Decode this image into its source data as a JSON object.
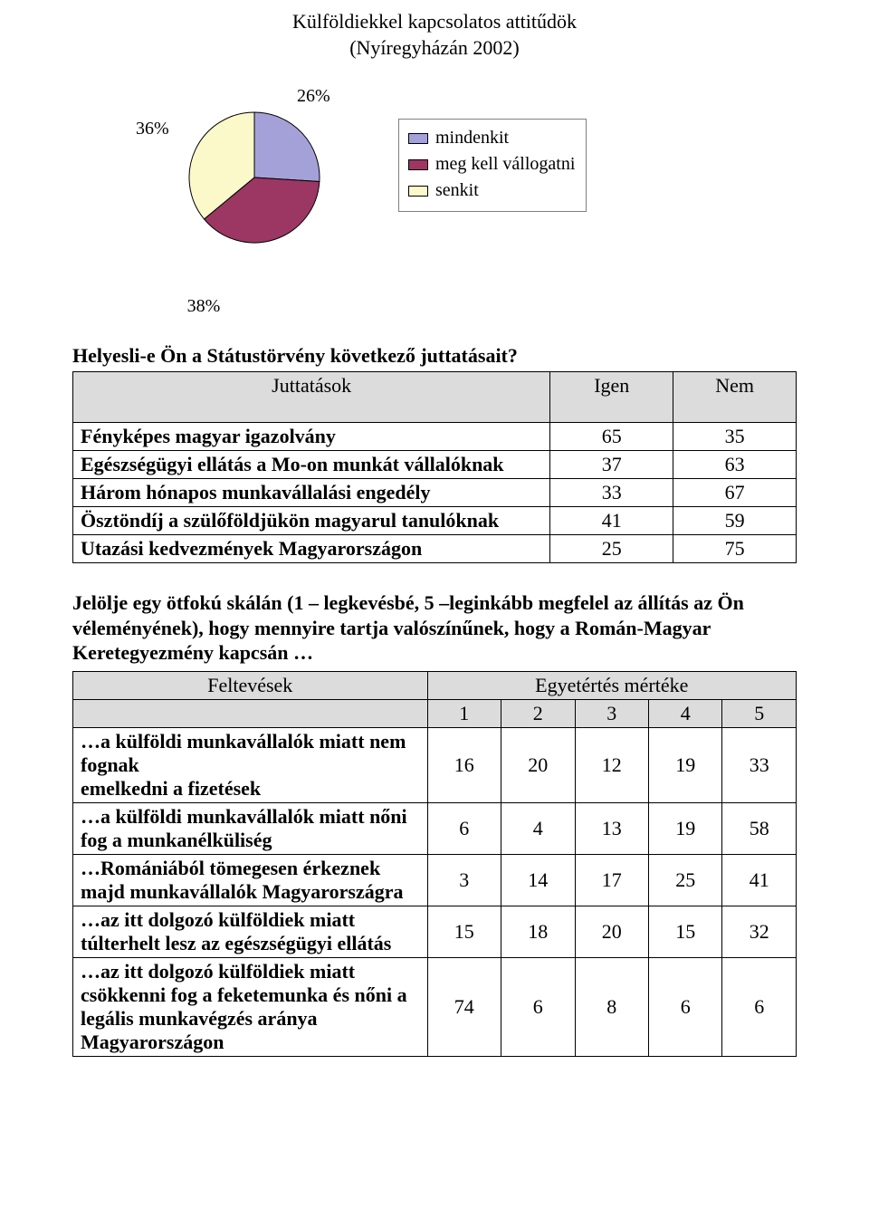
{
  "title": {
    "line1": "Külföldiekkel kapcsolatos attitűdök",
    "line2": "(Nyíregyházán 2002)"
  },
  "pie": {
    "type": "pie",
    "slices": [
      {
        "label": "mindenkit",
        "value": 26,
        "color": "#a4a1d9",
        "label_text": "26%"
      },
      {
        "label": "meg kell vállogatni",
        "value": 38,
        "color": "#9b3762",
        "label_text": "38%"
      },
      {
        "label": "senkit",
        "value": 36,
        "color": "#fbf9c9",
        "label_text": "36%"
      }
    ],
    "stroke": "#000000",
    "radius": 72,
    "label_fontsize": 20,
    "legend_border": "#7f7f7f"
  },
  "section1_heading": "Helyesli-e Ön a Státustörvény következő juttatásait?",
  "table1": {
    "header_bg": "#dcdcdc",
    "columns": [
      "Juttatások",
      "Igen",
      "Nem"
    ],
    "rows": [
      {
        "label": "Fényképes magyar igazolvány",
        "igen": "65",
        "nem": "35"
      },
      {
        "label": "Egészségügyi ellátás a Mo-on munkát vállalóknak",
        "igen": "37",
        "nem": "63"
      },
      {
        "label": "Három hónapos munkavállalási engedély",
        "igen": "33",
        "nem": "67"
      },
      {
        "label": "Ösztöndíj a szülőföldjükön magyarul tanulóknak",
        "igen": "41",
        "nem": "59"
      },
      {
        "label": "Utazási kedvezmények Magyarországon",
        "igen": "25",
        "nem": "75"
      }
    ]
  },
  "section2_paragraph": "Jelölje egy ötfokú skálán (1 – legkevésbé, 5 –leginkább megfelel az állítás az Ön véleményének), hogy mennyire tartja valószínűnek, hogy a Román-Magyar Keretegyezmény kapcsán …",
  "table2": {
    "header_bg": "#dcdcdc",
    "col_left": "Feltevések",
    "col_right": "Egyetértés mértéke",
    "scale": [
      "1",
      "2",
      "3",
      "4",
      "5"
    ],
    "rows": [
      {
        "label": "…a külföldi munkavállalók miatt nem fognak\nemelkedni a fizetések",
        "v": [
          "16",
          "20",
          "12",
          "19",
          "33"
        ]
      },
      {
        "label": "…a külföldi munkavállalók miatt nőni fog a munkanélküliség",
        "v": [
          "6",
          "4",
          "13",
          "19",
          "58"
        ]
      },
      {
        "label": "…Romániából tömegesen érkeznek majd munkavállalók Magyarországra",
        "v": [
          "3",
          "14",
          "17",
          "25",
          "41"
        ]
      },
      {
        "label": "…az itt dolgozó külföldiek miatt túlterhelt lesz az egészségügyi ellátás",
        "v": [
          "15",
          "18",
          "20",
          "15",
          "32"
        ]
      },
      {
        "label": "…az itt dolgozó külföldiek miatt csökkenni fog a feketemunka és nőni a legális munkavégzés aránya Magyarországon",
        "v": [
          "74",
          "6",
          "8",
          "6",
          "6"
        ]
      }
    ]
  }
}
